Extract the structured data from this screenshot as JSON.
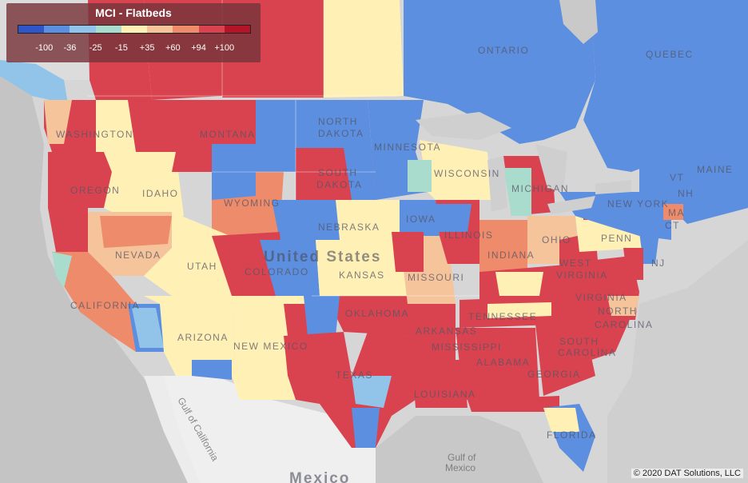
{
  "legend": {
    "title": "MCI - Flatbeds",
    "colors": [
      "#2f55c8",
      "#5c8fe0",
      "#92c4e9",
      "#a9dccc",
      "#fff0b5",
      "#f5c49b",
      "#ee8b6a",
      "#d9434f",
      "#b51428"
    ],
    "ticks": [
      "-100",
      "-36",
      "-25",
      "-15",
      "+35",
      "+60",
      "+94",
      "+100"
    ]
  },
  "map_labels": {
    "ontario": "ONTARIO",
    "quebec": "QUEBEC",
    "north_dakota": "NORTH DAKOTA",
    "minnesota": "MINNESOTA",
    "montana": "MONTANA",
    "washington": "WASHINGTON",
    "oregon": "OREGON",
    "idaho": "IDAHO",
    "wyoming": "WYOMING",
    "south_dakota": "SOUTH DAKOTA",
    "wisconsin": "WISCONSIN",
    "michigan": "MICHIGAN",
    "maine": "MAINE",
    "vt": "VT",
    "nh": "NH",
    "new_york": "NEW YORK",
    "ma": "MA",
    "ct": "CT",
    "iowa": "IOWA",
    "nebraska": "NEBRASKA",
    "nevada": "NEVADA",
    "utah": "UTAH",
    "colorado": "COLORADO",
    "united_states": "United States",
    "kansas": "KANSAS",
    "illinois": "ILLINOIS",
    "indiana": "INDIANA",
    "ohio": "OHIO",
    "penn": "PENN",
    "nj": "NJ",
    "missouri": "MISSOURI",
    "west_virginia": "WEST VIRGINIA",
    "virginia": "VIRGINIA",
    "california": "CALIFORNIA",
    "oklahoma": "OKLAHOMA",
    "tennessee": "TENNESSEE",
    "north_carolina": "NORTH CAROLINA",
    "arizona": "ARIZONA",
    "new_mexico": "NEW MEXICO",
    "arkansas": "ARKANSAS",
    "mississippi": "MISSISSIPPI",
    "south_carolina": "SOUTH CAROLINA",
    "alabama": "ALABAMA",
    "georgia": "GEORGIA",
    "texas": "TEXAS",
    "louisiana": "LOUISIANA",
    "florida": "FLORIDA",
    "gulf_california": "Gulf of California",
    "gulf_mexico_1": "Gulf of",
    "gulf_mexico_2": "Mexico",
    "mexico": "Mexico"
  },
  "copyright": "© 2020 DAT Solutions, LLC"
}
